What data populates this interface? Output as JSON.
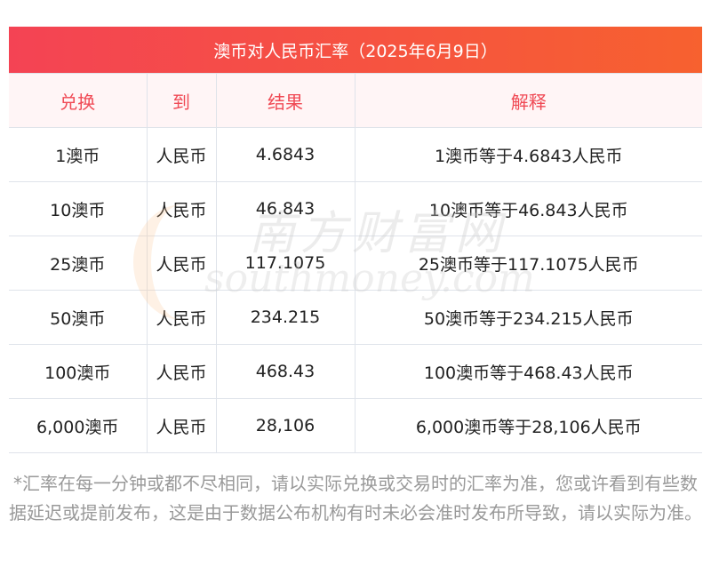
{
  "title": "澳币对人民币汇率（2025年6月9日）",
  "headers": [
    "兑换",
    "到",
    "结果",
    "解释"
  ],
  "rows": [
    [
      "1澳币",
      "人民币",
      "4.6843",
      "1澳币等于4.6843人民币"
    ],
    [
      "10澳币",
      "人民币",
      "46.843",
      "10澳币等于46.843人民币"
    ],
    [
      "25澳币",
      "人民币",
      "117.1075",
      "25澳币等于117.1075人民币"
    ],
    [
      "50澳币",
      "人民币",
      "234.215",
      "50澳币等于234.215人民币"
    ],
    [
      "100澳币",
      "人民币",
      "468.43",
      "100澳币等于468.43人民币"
    ],
    [
      "6,000澳币",
      "人民币",
      "28,106",
      "6,000澳币等于28,106人民币"
    ]
  ],
  "watermark": {
    "cn": "南方财富网",
    "en": "southmoney.com"
  },
  "note": "*汇率在每一分钟或都不尽相同，请以实际兑换或交易时的汇率为准，您或许看到有些数据延迟或提前发布，这是由于数据公布机构有时未必会准时发布所导致，请以实际为准。",
  "colors": {
    "title_start": "#f44354",
    "title_end": "#f7612f",
    "header_text": "#f04a55"
  }
}
